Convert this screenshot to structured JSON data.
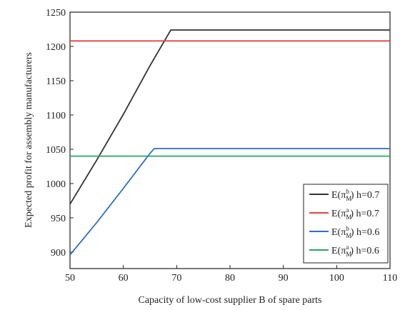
{
  "chart_data": {
    "type": "line",
    "xlabel": "Capacity of low-cost supplier B of spare parts",
    "ylabel": "Expected profit for assembly manufacturers",
    "xlim": [
      50,
      110
    ],
    "ylim": [
      876,
      1250
    ],
    "xticks": [
      50,
      60,
      70,
      80,
      90,
      100,
      110
    ],
    "yticks": [
      900,
      950,
      1000,
      1050,
      1100,
      1150,
      1200,
      1250
    ],
    "grid": false,
    "legend_position": "bottom-right",
    "series": [
      {
        "name": "E(π_M^b) h=0.7",
        "legend": {
          "pre": "E(π",
          "sub": "M",
          "sup": "b",
          "post": ") h=0.7"
        },
        "color": "#333333",
        "x": [
          50,
          55,
          60,
          65,
          68.9,
          110
        ],
        "y": [
          970,
          1034,
          1101,
          1172,
          1224,
          1224
        ]
      },
      {
        "name": "E(π_M^a) h=0.7",
        "legend": {
          "pre": "E(π",
          "sub": "M",
          "sup": "a",
          "post": ") h=0.7"
        },
        "color": "#e8423f",
        "x": [
          50,
          110
        ],
        "y": [
          1208,
          1208
        ]
      },
      {
        "name": "E(π_M^b) h=0.6",
        "legend": {
          "pre": "E(π",
          "sub": "M",
          "sup": "b",
          "post": ") h=0.6"
        },
        "color": "#2f6fc4",
        "x": [
          50,
          55,
          60,
          65,
          65.8,
          110
        ],
        "y": [
          896,
          943,
          993,
          1044,
          1051,
          1051
        ]
      },
      {
        "name": "E(π_M^a) h=0.6",
        "legend": {
          "pre": "E(π",
          "sub": "M",
          "sup": "a",
          "post": ") h=0.6"
        },
        "color": "#2aa468",
        "x": [
          50,
          110
        ],
        "y": [
          1040,
          1040
        ]
      }
    ]
  }
}
